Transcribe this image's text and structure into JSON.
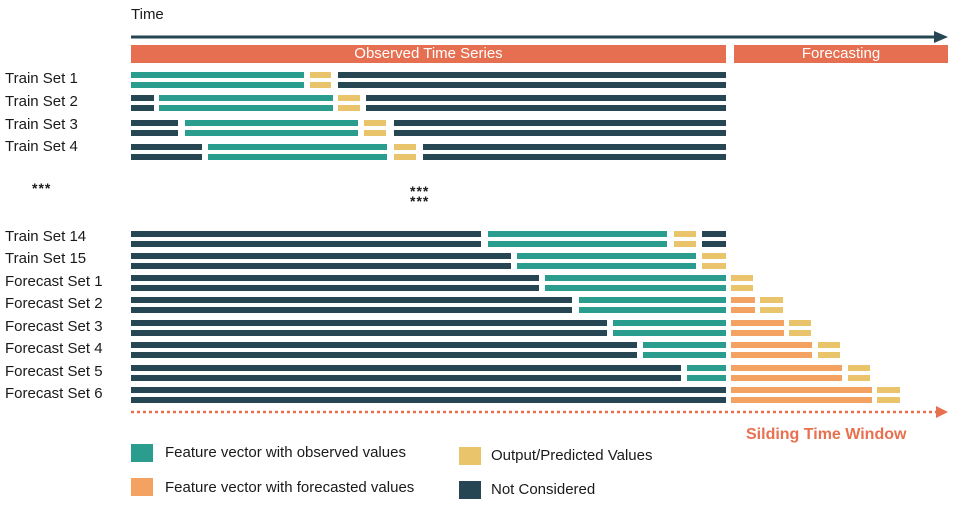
{
  "time_axis": {
    "label": "Time"
  },
  "header": {
    "observed_label": "Observed Time Series",
    "forecast_label": "Forecasting"
  },
  "colors": {
    "observed": "#2a9d8f",
    "output": "#e9c46a",
    "forecasted": "#f4a261",
    "not_considered": "#264653",
    "header": "#e76f51",
    "axis": "#264653",
    "window_arrow": "#e8704f"
  },
  "rows": [
    {
      "label": "Train Set 1",
      "segments": [
        [
          "observed",
          131,
          304
        ],
        [
          "output",
          310,
          331
        ],
        [
          "not_considered",
          338,
          726
        ]
      ]
    },
    {
      "label": "Train Set 2",
      "segments": [
        [
          "not_considered",
          131,
          154
        ],
        [
          "observed",
          159,
          333
        ],
        [
          "output",
          338,
          360
        ],
        [
          "not_considered",
          366,
          726
        ]
      ]
    },
    {
      "label": "Train Set 3",
      "segments": [
        [
          "not_considered",
          131,
          178
        ],
        [
          "observed",
          185,
          358
        ],
        [
          "output",
          364,
          386
        ],
        [
          "not_considered",
          394,
          726
        ]
      ]
    },
    {
      "label": "Train Set 4",
      "segments": [
        [
          "not_considered",
          131,
          202
        ],
        [
          "observed",
          208,
          387
        ],
        [
          "output",
          394,
          416
        ],
        [
          "not_considered",
          423,
          726
        ]
      ]
    },
    {
      "label": "Train Set 14",
      "segments": [
        [
          "not_considered",
          131,
          481
        ],
        [
          "observed",
          488,
          667
        ],
        [
          "output",
          674,
          696
        ],
        [
          "not_considered",
          702,
          726
        ]
      ]
    },
    {
      "label": "Train Set 15",
      "segments": [
        [
          "not_considered",
          131,
          511
        ],
        [
          "observed",
          517,
          696
        ],
        [
          "output",
          702,
          726
        ]
      ]
    },
    {
      "label": "Forecast Set 1",
      "segments": [
        [
          "not_considered",
          131,
          539
        ],
        [
          "observed",
          545,
          726
        ],
        [
          "output",
          731,
          753
        ]
      ]
    },
    {
      "label": "Forecast Set 2",
      "segments": [
        [
          "not_considered",
          131,
          572
        ],
        [
          "observed",
          579,
          726
        ],
        [
          "forecasted",
          731,
          755
        ],
        [
          "output",
          760,
          783
        ]
      ]
    },
    {
      "label": "Forecast Set 3",
      "segments": [
        [
          "not_considered",
          131,
          607
        ],
        [
          "observed",
          613,
          726
        ],
        [
          "forecasted",
          731,
          784
        ],
        [
          "output",
          789,
          811
        ]
      ]
    },
    {
      "label": "Forecast Set 4",
      "segments": [
        [
          "not_considered",
          131,
          637
        ],
        [
          "observed",
          643,
          726
        ],
        [
          "forecasted",
          731,
          812
        ],
        [
          "output",
          818,
          840
        ]
      ]
    },
    {
      "label": "Forecast Set 5",
      "segments": [
        [
          "not_considered",
          131,
          681
        ],
        [
          "observed",
          687,
          726
        ],
        [
          "forecasted",
          731,
          842
        ],
        [
          "output",
          848,
          870
        ]
      ]
    },
    {
      "label": "Forecast Set 6",
      "segments": [
        [
          "not_considered",
          131,
          726
        ],
        [
          "forecasted",
          731,
          872
        ],
        [
          "output",
          877,
          900
        ]
      ]
    }
  ],
  "ellipsis": {
    "left": "***",
    "middle_top": "***",
    "middle_bottom": "***"
  },
  "sliding_window": {
    "label": "Silding Time Window"
  },
  "legend": {
    "observed": "Feature vector with observed values",
    "output": "Output/Predicted Values",
    "forecasted": "Feature vector with forecasted values",
    "not_considered": "Not Considered"
  }
}
